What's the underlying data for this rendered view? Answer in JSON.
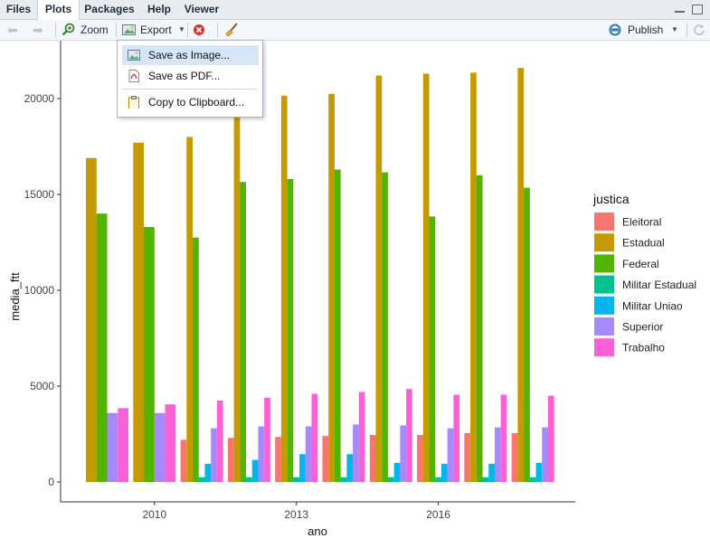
{
  "tabs": [
    {
      "label": "Files",
      "active": false
    },
    {
      "label": "Plots",
      "active": true
    },
    {
      "label": "Packages",
      "active": false
    },
    {
      "label": "Help",
      "active": false
    },
    {
      "label": "Viewer",
      "active": false
    }
  ],
  "toolbar": {
    "zoom_label": "Zoom",
    "export_label": "Export",
    "publish_label": "Publish"
  },
  "export_menu": [
    {
      "label": "Save as Image...",
      "icon": "image-icon",
      "highlighted": true
    },
    {
      "label": "Save as PDF...",
      "icon": "pdf-icon",
      "highlighted": false
    },
    {
      "label": "Copy to Clipboard...",
      "icon": "clipboard-icon",
      "highlighted": false
    }
  ],
  "colors": {
    "Eleitoral": "#F8766D",
    "Estadual": "#C49A00",
    "Federal": "#53B400",
    "Militar Estadual": "#00C094",
    "Militar Uniao": "#00B6EB",
    "Superior": "#A58AFF",
    "Trabalho": "#FB61D7"
  },
  "chart_data": {
    "type": "bar",
    "xlabel": "ano",
    "ylabel": "media_ftt",
    "legend_title": "justica",
    "legend_position": "right",
    "x_ticks": [
      "2010",
      "2013",
      "2016"
    ],
    "y_ticks": [
      "0",
      "5000",
      "10000",
      "15000",
      "20000"
    ],
    "ylim": [
      0,
      22500
    ],
    "grid": false,
    "categories": [
      "2009",
      "2010",
      "2011",
      "2012",
      "2013",
      "2014",
      "2015",
      "2016",
      "2017",
      "2018"
    ],
    "series": [
      {
        "name": "Eleitoral",
        "values": [
          null,
          null,
          2200,
          2300,
          2350,
          2400,
          2450,
          2450,
          2550,
          2550
        ]
      },
      {
        "name": "Estadual",
        "values": [
          16900,
          17700,
          18000,
          20000,
          20150,
          20250,
          21200,
          21300,
          21350,
          21600
        ]
      },
      {
        "name": "Federal",
        "values": [
          14000,
          13300,
          12750,
          15650,
          15800,
          16300,
          16150,
          13850,
          16000,
          15350
        ]
      },
      {
        "name": "Militar Estadual",
        "values": [
          null,
          null,
          250,
          250,
          250,
          250,
          250,
          250,
          250,
          250
        ]
      },
      {
        "name": "Militar Uniao",
        "values": [
          null,
          null,
          950,
          1150,
          1450,
          1450,
          1000,
          950,
          950,
          1000
        ]
      },
      {
        "name": "Superior",
        "values": [
          3600,
          3600,
          2800,
          2900,
          2900,
          3000,
          2950,
          2800,
          2850,
          2850
        ]
      },
      {
        "name": "Trabalho",
        "values": [
          3850,
          4050,
          4250,
          4400,
          4600,
          4700,
          4850,
          4550,
          4550,
          4500
        ]
      }
    ]
  }
}
